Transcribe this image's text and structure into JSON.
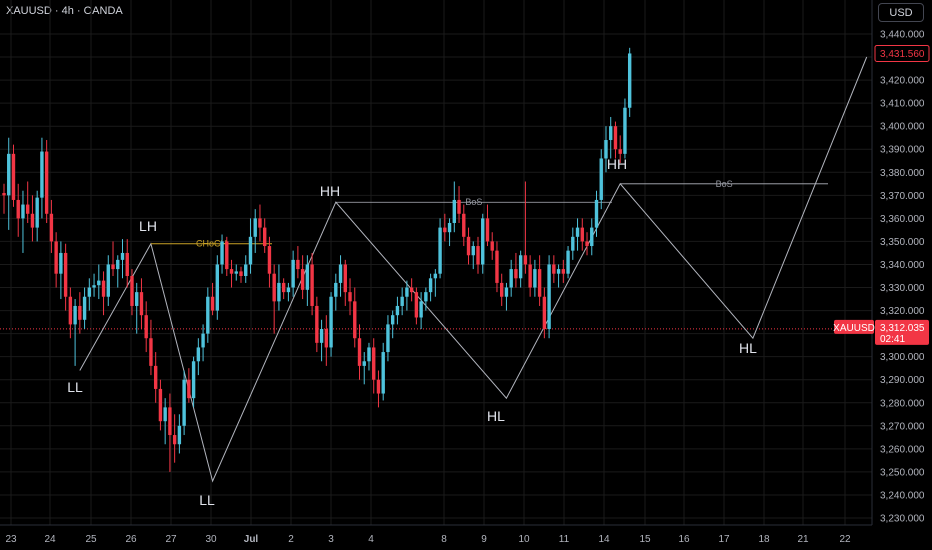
{
  "header": {
    "title": "XAUUSD · 4h · OANDA",
    "currency": "USD"
  },
  "chart_data": {
    "type": "candlestick",
    "symbol": "XAUUSD",
    "timeframe": "4h",
    "exchange": "OANDA",
    "ylim": [
      3225,
      3450
    ],
    "y_ticks": [
      "3,440.000",
      "3,430.000",
      "3,420.000",
      "3,410.000",
      "3,400.000",
      "3,390.000",
      "3,380.000",
      "3,370.000",
      "3,360.000",
      "3,350.000",
      "3,340.000",
      "3,330.000",
      "3,320.000",
      "3,310.000",
      "3,300.000",
      "3,290.000",
      "3,280.000",
      "3,270.000",
      "3,260.000",
      "3,250.000",
      "3,240.000",
      "3,230.000"
    ],
    "x_ticks": [
      "23",
      "24",
      "25",
      "26",
      "27",
      "30",
      "Jul",
      "2",
      "3",
      "4",
      "8",
      "9",
      "10",
      "11",
      "14",
      "15",
      "16",
      "17",
      "18",
      "21",
      "22"
    ],
    "candles": [
      [
        3371,
        3375,
        3362,
        3370
      ],
      [
        3370,
        3395,
        3355,
        3388
      ],
      [
        3388,
        3392,
        3365,
        3368
      ],
      [
        3368,
        3375,
        3352,
        3360
      ],
      [
        3360,
        3372,
        3345,
        3366
      ],
      [
        3366,
        3376,
        3358,
        3362
      ],
      [
        3362,
        3370,
        3350,
        3356
      ],
      [
        3356,
        3372,
        3350,
        3369
      ],
      [
        3369,
        3395,
        3360,
        3389
      ],
      [
        3389,
        3394,
        3358,
        3362
      ],
      [
        3362,
        3368,
        3345,
        3350
      ],
      [
        3350,
        3354,
        3330,
        3336
      ],
      [
        3336,
        3350,
        3325,
        3345
      ],
      [
        3345,
        3349,
        3320,
        3326
      ],
      [
        3326,
        3330,
        3308,
        3314
      ],
      [
        3314,
        3325,
        3296,
        3322
      ],
      [
        3322,
        3328,
        3310,
        3316
      ],
      [
        3316,
        3330,
        3312,
        3326
      ],
      [
        3326,
        3334,
        3320,
        3330
      ],
      [
        3330,
        3336,
        3326,
        3331
      ],
      [
        3331,
        3340,
        3325,
        3333
      ],
      [
        3333,
        3337,
        3318,
        3326
      ],
      [
        3326,
        3344,
        3322,
        3340
      ],
      [
        3340,
        3350,
        3335,
        3338
      ],
      [
        3338,
        3344,
        3330,
        3342
      ],
      [
        3342,
        3351,
        3334,
        3345
      ],
      [
        3345,
        3351,
        3330,
        3335
      ],
      [
        3335,
        3338,
        3318,
        3322
      ],
      [
        3322,
        3332,
        3310,
        3328
      ],
      [
        3328,
        3334,
        3312,
        3318
      ],
      [
        3318,
        3324,
        3302,
        3308
      ],
      [
        3308,
        3316,
        3292,
        3296
      ],
      [
        3296,
        3302,
        3280,
        3286
      ],
      [
        3286,
        3290,
        3268,
        3272
      ],
      [
        3272,
        3282,
        3262,
        3278
      ],
      [
        3278,
        3284,
        3250,
        3266
      ],
      [
        3266,
        3275,
        3254,
        3262
      ],
      [
        3262,
        3275,
        3258,
        3270
      ],
      [
        3270,
        3294,
        3266,
        3290
      ],
      [
        3290,
        3295,
        3280,
        3282
      ],
      [
        3282,
        3300,
        3278,
        3298
      ],
      [
        3298,
        3308,
        3292,
        3304
      ],
      [
        3304,
        3314,
        3298,
        3310
      ],
      [
        3310,
        3330,
        3306,
        3326
      ],
      [
        3326,
        3332,
        3318,
        3320
      ],
      [
        3320,
        3344,
        3316,
        3340
      ],
      [
        3340,
        3353,
        3336,
        3350
      ],
      [
        3350,
        3352,
        3335,
        3338
      ],
      [
        3338,
        3342,
        3330,
        3336
      ],
      [
        3336,
        3340,
        3333,
        3337
      ],
      [
        3337,
        3339,
        3332,
        3335
      ],
      [
        3335,
        3344,
        3332,
        3340
      ],
      [
        3340,
        3360,
        3336,
        3352
      ],
      [
        3352,
        3364,
        3345,
        3360
      ],
      [
        3360,
        3366,
        3350,
        3356
      ],
      [
        3356,
        3360,
        3345,
        3348
      ],
      [
        3348,
        3352,
        3330,
        3336
      ],
      [
        3336,
        3340,
        3310,
        3324
      ],
      [
        3324,
        3340,
        3320,
        3332
      ],
      [
        3332,
        3334,
        3325,
        3328
      ],
      [
        3328,
        3332,
        3324,
        3330
      ],
      [
        3330,
        3346,
        3326,
        3342
      ],
      [
        3342,
        3348,
        3334,
        3338
      ],
      [
        3338,
        3344,
        3325,
        3329
      ],
      [
        3329,
        3344,
        3322,
        3340
      ],
      [
        3340,
        3345,
        3318,
        3322
      ],
      [
        3322,
        3326,
        3302,
        3306
      ],
      [
        3306,
        3316,
        3298,
        3312
      ],
      [
        3312,
        3318,
        3296,
        3304
      ],
      [
        3304,
        3328,
        3300,
        3326
      ],
      [
        3326,
        3336,
        3320,
        3332
      ],
      [
        3332,
        3344,
        3326,
        3340
      ],
      [
        3340,
        3342,
        3322,
        3328
      ],
      [
        3328,
        3334,
        3318,
        3324
      ],
      [
        3324,
        3330,
        3304,
        3308
      ],
      [
        3308,
        3314,
        3290,
        3296
      ],
      [
        3296,
        3302,
        3288,
        3298
      ],
      [
        3298,
        3306,
        3294,
        3304
      ],
      [
        3304,
        3308,
        3284,
        3290
      ],
      [
        3290,
        3294,
        3278,
        3284
      ],
      [
        3284,
        3306,
        3281,
        3302
      ],
      [
        3302,
        3318,
        3298,
        3314
      ],
      [
        3314,
        3320,
        3308,
        3318
      ],
      [
        3318,
        3326,
        3314,
        3322
      ],
      [
        3322,
        3330,
        3318,
        3326
      ],
      [
        3326,
        3333,
        3320,
        3330
      ],
      [
        3330,
        3334,
        3324,
        3328
      ],
      [
        3328,
        3330,
        3314,
        3317
      ],
      [
        3317,
        3328,
        3312,
        3324
      ],
      [
        3324,
        3330,
        3320,
        3328
      ],
      [
        3328,
        3336,
        3324,
        3334
      ],
      [
        3334,
        3338,
        3326,
        3336
      ],
      [
        3336,
        3360,
        3334,
        3356
      ],
      [
        3356,
        3362,
        3350,
        3354
      ],
      [
        3354,
        3360,
        3348,
        3358
      ],
      [
        3358,
        3376,
        3354,
        3368
      ],
      [
        3368,
        3374,
        3358,
        3362
      ],
      [
        3362,
        3366,
        3348,
        3352
      ],
      [
        3352,
        3356,
        3340,
        3344
      ],
      [
        3344,
        3350,
        3338,
        3348
      ],
      [
        3348,
        3352,
        3336,
        3340
      ],
      [
        3340,
        3362,
        3336,
        3360
      ],
      [
        3360,
        3366,
        3348,
        3350
      ],
      [
        3350,
        3354,
        3342,
        3346
      ],
      [
        3346,
        3350,
        3328,
        3332
      ],
      [
        3332,
        3336,
        3322,
        3326
      ],
      [
        3326,
        3332,
        3320,
        3330
      ],
      [
        3330,
        3342,
        3326,
        3338
      ],
      [
        3338,
        3345,
        3330,
        3334
      ],
      [
        3334,
        3346,
        3330,
        3344
      ],
      [
        3344,
        3376,
        3336,
        3340
      ],
      [
        3340,
        3344,
        3326,
        3330
      ],
      [
        3330,
        3342,
        3326,
        3338
      ],
      [
        3338,
        3344,
        3322,
        3326
      ],
      [
        3326,
        3330,
        3308,
        3312
      ],
      [
        3312,
        3344,
        3308,
        3340
      ],
      [
        3340,
        3344,
        3332,
        3336
      ],
      [
        3336,
        3340,
        3330,
        3338
      ],
      [
        3338,
        3342,
        3332,
        3336
      ],
      [
        3336,
        3348,
        3334,
        3346
      ],
      [
        3346,
        3356,
        3342,
        3352
      ],
      [
        3352,
        3360,
        3346,
        3356
      ],
      [
        3356,
        3360,
        3346,
        3350
      ],
      [
        3350,
        3354,
        3344,
        3348
      ],
      [
        3348,
        3360,
        3344,
        3356
      ],
      [
        3356,
        3372,
        3352,
        3368
      ],
      [
        3368,
        3390,
        3364,
        3386
      ],
      [
        3386,
        3400,
        3380,
        3394
      ],
      [
        3394,
        3404,
        3386,
        3400
      ],
      [
        3400,
        3402,
        3386,
        3390
      ],
      [
        3390,
        3396,
        3384,
        3388
      ],
      [
        3388,
        3412,
        3386,
        3408
      ],
      [
        3408,
        3434,
        3404,
        3431.56
      ]
    ],
    "swing_labels": [
      "LL",
      "LH",
      "LL",
      "HH",
      "HL",
      "HH",
      "HL"
    ],
    "annotations": [
      "CHoCH",
      "BoS",
      "BoS"
    ],
    "current_price": {
      "value": 3431.56,
      "label": "3,431.560"
    },
    "reference_price": {
      "value": 3312.035,
      "label": "3,312.035",
      "symbol": "XAUUSD",
      "countdown": "02:41"
    },
    "colors": {
      "up": "#26a69a",
      "up_body": "#4fc3dc",
      "down": "#f23645",
      "background": "#000000",
      "grid": "#1a1a1a",
      "structure": "#b2b5be",
      "choch": "#c9a227"
    }
  }
}
